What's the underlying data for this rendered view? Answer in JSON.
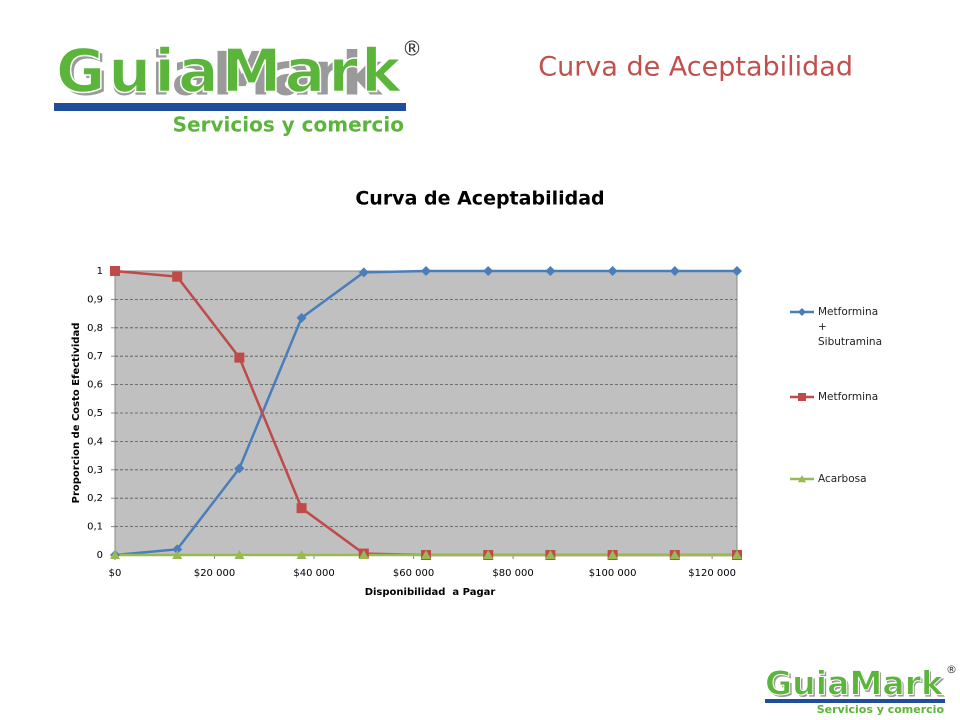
{
  "logos": [
    {
      "name": "GuiaMark",
      "mark": "®",
      "tagline": "Servicios y comercio"
    },
    {
      "name": "GuiaMark",
      "mark": "®",
      "tagline": "Servicios y comercio"
    }
  ],
  "slide_title": "Curva de Aceptabilidad",
  "chart_data": {
    "type": "line",
    "title": "Curva de Aceptabilidad",
    "x_label": "Disponibilidad  a Pagar",
    "y_label": "Proporcion de Costo Efectividad",
    "x": [
      0,
      12500,
      25000,
      37500,
      50000,
      62500,
      75000,
      87500,
      100000,
      112500,
      125000
    ],
    "series": [
      {
        "name": "Metformina + Sibutramina",
        "color": "#4a7ebb",
        "marker": "diamond",
        "values": [
          0,
          0.02,
          0.305,
          0.835,
          0.995,
          1,
          1,
          1,
          1,
          1,
          1
        ]
      },
      {
        "name": "Metformina",
        "color": "#be4b48",
        "marker": "square",
        "values": [
          1,
          0.98,
          0.695,
          0.165,
          0.005,
          0,
          0,
          0,
          0,
          0,
          0
        ]
      },
      {
        "name": "Acarbosa",
        "color": "#98b954",
        "marker": "triangle",
        "values": [
          0,
          0,
          0,
          0,
          0,
          0,
          0,
          0,
          0,
          0,
          0
        ]
      }
    ],
    "xlim": [
      0,
      125000
    ],
    "xticks": [
      {
        "value": 0,
        "label": "$0"
      },
      {
        "value": 20000,
        "label": "$20 000"
      },
      {
        "value": 40000,
        "label": "$40 000"
      },
      {
        "value": 60000,
        "label": "$60 000"
      },
      {
        "value": 80000,
        "label": "$80 000"
      },
      {
        "value": 100000,
        "label": "$100 000"
      },
      {
        "value": 120000,
        "label": "$120 000"
      }
    ],
    "ylim": [
      0,
      1
    ],
    "yticks": [
      0,
      {
        "value": 0.1,
        "label": "0,1"
      },
      {
        "value": 0.2,
        "label": "0,2"
      },
      {
        "value": 0.3,
        "label": "0,3"
      },
      {
        "value": 0.4,
        "label": "0,4"
      },
      {
        "value": 0.5,
        "label": "0,5"
      },
      {
        "value": 0.6,
        "label": "0,6"
      },
      {
        "value": 0.7,
        "label": "0,7"
      },
      {
        "value": 0.8,
        "label": "0,8"
      },
      {
        "value": 0.9,
        "label": "0,9"
      },
      1
    ],
    "grid": true,
    "legend": "right"
  }
}
